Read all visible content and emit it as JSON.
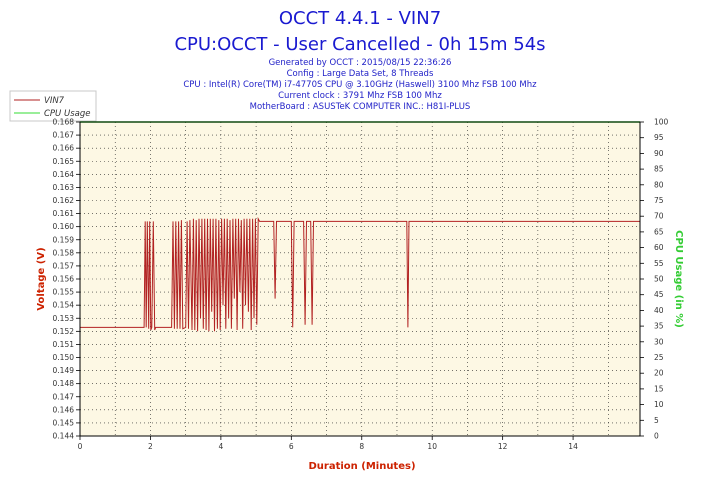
{
  "title_line1": "OCCT 4.4.1 - VIN7",
  "title_line2": "CPU:OCCT - User Cancelled - 0h 15m 54s",
  "info_lines": [
    "Generated by OCCT : 2015/08/15 22:36:26",
    "Config : Large Data Set, 8 Threads",
    "CPU : Intel(R) Core(TM) i7-4770S CPU @ 3.10GHz (Haswell) 3100 Mhz FSB 100 Mhz",
    "Current clock : 3791 Mhz FSB 100 Mhz",
    "MotherBoard : ASUSTeK COMPUTER INC.: H81I-PLUS"
  ],
  "colors": {
    "title": "#1a1ad0",
    "voltage_series": "#b22222",
    "cpu_series": "#33dd33",
    "plot_background": "#fdf8e4",
    "x_axis_label": "#cc2200",
    "y_axis_label": "#cc2200",
    "y2_axis_label": "#33cc33"
  },
  "chart_data": {
    "type": "line",
    "xlabel": "Duration (Minutes)",
    "ylabel": "Voltage (V)",
    "y2label": "CPU Usage (in %)",
    "xlim": [
      0,
      15.9
    ],
    "ylim": [
      0.144,
      0.168
    ],
    "y2lim": [
      0,
      100
    ],
    "x_ticks": [
      0,
      2,
      4,
      6,
      8,
      10,
      12,
      14
    ],
    "y_ticks": [
      "0.144",
      "0.145",
      "0.146",
      "0.147",
      "0.148",
      "0.149",
      "0.150",
      "0.151",
      "0.152",
      "0.153",
      "0.154",
      "0.155",
      "0.156",
      "0.157",
      "0.158",
      "0.159",
      "0.160",
      "0.161",
      "0.162",
      "0.163",
      "0.164",
      "0.165",
      "0.166",
      "0.167",
      "0.168"
    ],
    "y2_ticks": [
      0,
      5,
      10,
      15,
      20,
      25,
      30,
      35,
      40,
      45,
      50,
      55,
      60,
      65,
      70,
      75,
      80,
      85,
      90,
      95,
      100
    ],
    "grid": true,
    "legend_position": "top-left",
    "series": [
      {
        "name": "VIN7",
        "axis": "left",
        "x": [
          0,
          1.82,
          1.85,
          1.88,
          1.91,
          1.95,
          1.98,
          2.01,
          2.04,
          2.08,
          2.12,
          2.15,
          2.6,
          2.64,
          2.68,
          2.72,
          2.76,
          2.8,
          2.84,
          2.88,
          2.92,
          3.0,
          3.04,
          3.08,
          3.12,
          3.18,
          3.22,
          3.26,
          3.3,
          3.34,
          3.38,
          3.42,
          3.46,
          3.5,
          3.54,
          3.58,
          3.62,
          3.66,
          3.7,
          3.74,
          3.78,
          3.82,
          3.86,
          3.9,
          3.94,
          3.98,
          4.02,
          4.06,
          4.1,
          4.14,
          4.18,
          4.22,
          4.26,
          4.3,
          4.34,
          4.38,
          4.42,
          4.46,
          4.5,
          4.54,
          4.58,
          4.62,
          4.66,
          4.7,
          4.74,
          4.78,
          4.82,
          4.86,
          4.9,
          4.94,
          4.98,
          5.02,
          5.06,
          5.1,
          5.5,
          5.54,
          5.58,
          5.62,
          6.0,
          6.04,
          6.08,
          6.12,
          6.35,
          6.39,
          6.43,
          6.47,
          6.55,
          6.59,
          6.63,
          6.67,
          9.28,
          9.31,
          9.34,
          9.37,
          15.9
        ],
        "y": [
          0.1523,
          0.1523,
          0.1604,
          0.1523,
          0.1604,
          0.1522,
          0.1604,
          0.1521,
          0.1523,
          0.1604,
          0.1521,
          0.1523,
          0.1523,
          0.1604,
          0.1522,
          0.1604,
          0.1522,
          0.1604,
          0.1522,
          0.1605,
          0.1522,
          0.1523,
          0.1604,
          0.1522,
          0.1605,
          0.1521,
          0.1606,
          0.1521,
          0.1605,
          0.152,
          0.1606,
          0.153,
          0.1606,
          0.1522,
          0.1606,
          0.1521,
          0.1606,
          0.152,
          0.1606,
          0.1535,
          0.1606,
          0.152,
          0.1606,
          0.1522,
          0.1605,
          0.1521,
          0.1606,
          0.154,
          0.1606,
          0.1522,
          0.1606,
          0.153,
          0.1605,
          0.1522,
          0.1606,
          0.1545,
          0.1606,
          0.1521,
          0.1606,
          0.155,
          0.1605,
          0.1522,
          0.1606,
          0.154,
          0.1606,
          0.1535,
          0.1606,
          0.1521,
          0.1606,
          0.153,
          0.1606,
          0.1525,
          0.1606,
          0.1604,
          0.1604,
          0.1545,
          0.1604,
          0.1604,
          0.1604,
          0.1523,
          0.1604,
          0.1604,
          0.1604,
          0.1525,
          0.1604,
          0.1604,
          0.1604,
          0.1525,
          0.1604,
          0.1604,
          0.1604,
          0.1523,
          0.1604,
          0.1604,
          0.1604
        ]
      },
      {
        "name": "CPU Usage",
        "axis": "right",
        "x": [
          0,
          15.9
        ],
        "y": [
          100,
          100
        ]
      }
    ]
  }
}
